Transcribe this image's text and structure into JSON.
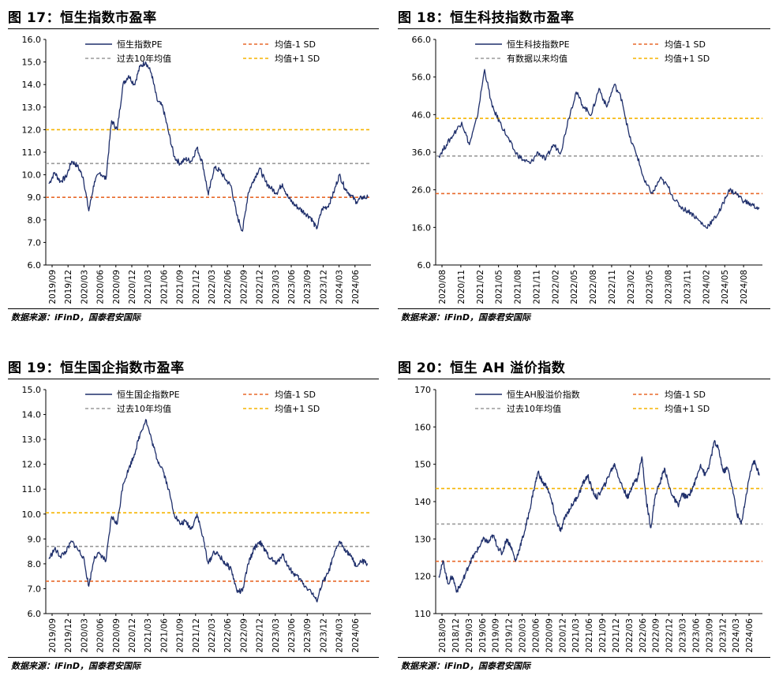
{
  "panels": [
    {
      "title": "图 17：恒生指数市盈率",
      "source": "数据来源：iFinD，国泰君安国际"
    },
    {
      "title": "图 18：恒生科技指数市盈率",
      "source": "数据来源：iFinD，国泰君安国际"
    },
    {
      "title": "图 19：恒生国企指数市盈率",
      "source": "数据来源：iFinD，国泰君安国际"
    },
    {
      "title": "图 20：恒生 AH 溢价指数",
      "source": "数据来源：iFinD，国泰君安国际"
    }
  ],
  "colors": {
    "series": "#1f2f6b",
    "avg": "#9a9a9a",
    "minus1sd": "#e8692a",
    "plus1sd": "#f5b400"
  },
  "chart_data": [
    {
      "type": "line",
      "ylim": [
        6,
        16
      ],
      "yticks": [
        "6.0",
        "7.0",
        "8.0",
        "9.0",
        "10.0",
        "11.0",
        "12.0",
        "13.0",
        "14.0",
        "15.0",
        "16.0"
      ],
      "xticks": [
        "2019/09",
        "2019/12",
        "2020/03",
        "2020/06",
        "2020/09",
        "2020/12",
        "2021/03",
        "2021/06",
        "2021/09",
        "2021/12",
        "2022/03",
        "2022/06",
        "2022/09",
        "2022/12",
        "2023/03",
        "2023/06",
        "2023/09",
        "2023/12",
        "2024/03",
        "2024/06"
      ],
      "x_range": [
        "2019/09",
        "2024/08"
      ],
      "legend": {
        "series": "恒生指数PE",
        "avg": "过去10年均值",
        "minus1sd": "均值-1 SD",
        "plus1sd": "均值+1 SD"
      },
      "ref_lines": {
        "avg": 10.5,
        "minus1sd": 9.0,
        "plus1sd": 12.0
      },
      "series": [
        {
          "name": "恒生指数PE",
          "points": [
            [
              0,
              9.6
            ],
            [
              1,
              10.1
            ],
            [
              2,
              9.7
            ],
            [
              3,
              9.9
            ],
            [
              4,
              10.6
            ],
            [
              5,
              10.4
            ],
            [
              6,
              9.9
            ],
            [
              7,
              8.4
            ],
            [
              8,
              9.7
            ],
            [
              9,
              10.1
            ],
            [
              10,
              9.8
            ],
            [
              11,
              12.4
            ],
            [
              12,
              12.0
            ],
            [
              13,
              14.0
            ],
            [
              14,
              14.4
            ],
            [
              15,
              14.0
            ],
            [
              16,
              14.8
            ],
            [
              17,
              15.0
            ],
            [
              18,
              14.5
            ],
            [
              19,
              13.3
            ],
            [
              20,
              13.0
            ],
            [
              21,
              11.9
            ],
            [
              22,
              10.8
            ],
            [
              23,
              10.5
            ],
            [
              24,
              10.7
            ],
            [
              25,
              10.6
            ],
            [
              26,
              11.2
            ],
            [
              27,
              10.5
            ],
            [
              28,
              9.1
            ],
            [
              29,
              10.3
            ],
            [
              30,
              10.2
            ],
            [
              31,
              9.8
            ],
            [
              32,
              9.5
            ],
            [
              33,
              8.2
            ],
            [
              34,
              7.5
            ],
            [
              35,
              9.2
            ],
            [
              36,
              9.8
            ],
            [
              37,
              10.3
            ],
            [
              38,
              9.7
            ],
            [
              39,
              9.4
            ],
            [
              40,
              9.2
            ],
            [
              41,
              9.6
            ],
            [
              42,
              9.0
            ],
            [
              43,
              8.7
            ],
            [
              44,
              8.5
            ],
            [
              45,
              8.3
            ],
            [
              46,
              8.1
            ],
            [
              47,
              7.6
            ],
            [
              48,
              8.5
            ],
            [
              49,
              8.6
            ],
            [
              50,
              9.2
            ],
            [
              51,
              10.0
            ],
            [
              52,
              9.4
            ],
            [
              53,
              9.1
            ],
            [
              54,
              8.8
            ],
            [
              55,
              9.0
            ],
            [
              56,
              9.0
            ]
          ]
        }
      ]
    },
    {
      "type": "line",
      "ylim": [
        6,
        66
      ],
      "yticks": [
        "6.0",
        "16.0",
        "26.0",
        "36.0",
        "46.0",
        "56.0",
        "66.0"
      ],
      "xticks": [
        "2020/08",
        "2020/11",
        "2021/02",
        "2021/05",
        "2021/08",
        "2021/11",
        "2022/02",
        "2022/05",
        "2022/08",
        "2022/11",
        "2023/02",
        "2023/05",
        "2023/08",
        "2023/11",
        "2024/02",
        "2024/05",
        "2024/08"
      ],
      "x_range": [
        "2020/08",
        "2024/08"
      ],
      "legend": {
        "series": "恒生科技指数PE",
        "avg": "有数据以来均值",
        "minus1sd": "均值-1 SD",
        "plus1sd": "均值+1 SD"
      },
      "ref_lines": {
        "avg": 35.0,
        "minus1sd": 25.0,
        "plus1sd": 45.0
      },
      "series": [
        {
          "name": "恒生科技指数PE",
          "points": [
            [
              0,
              35
            ],
            [
              1,
              38
            ],
            [
              2,
              41
            ],
            [
              3,
              44
            ],
            [
              4,
              38
            ],
            [
              5,
              45
            ],
            [
              6,
              58
            ],
            [
              7,
              48
            ],
            [
              8,
              44
            ],
            [
              9,
              40
            ],
            [
              10,
              36
            ],
            [
              11,
              34
            ],
            [
              12,
              33
            ],
            [
              13,
              36
            ],
            [
              14,
              34
            ],
            [
              15,
              38
            ],
            [
              16,
              36
            ],
            [
              17,
              45
            ],
            [
              18,
              52
            ],
            [
              19,
              48
            ],
            [
              20,
              46
            ],
            [
              21,
              53
            ],
            [
              22,
              48
            ],
            [
              23,
              54
            ],
            [
              24,
              50
            ],
            [
              25,
              40
            ],
            [
              26,
              35
            ],
            [
              27,
              28
            ],
            [
              28,
              25
            ],
            [
              29,
              29
            ],
            [
              30,
              27
            ],
            [
              31,
              23
            ],
            [
              32,
              21
            ],
            [
              33,
              20
            ],
            [
              34,
              18
            ],
            [
              35,
              16
            ],
            [
              36,
              18
            ],
            [
              37,
              21
            ],
            [
              38,
              26
            ],
            [
              39,
              25
            ],
            [
              40,
              23
            ],
            [
              41,
              22
            ],
            [
              42,
              21
            ]
          ]
        }
      ]
    },
    {
      "type": "line",
      "ylim": [
        6,
        15
      ],
      "yticks": [
        "6.0",
        "7.0",
        "8.0",
        "9.0",
        "10.0",
        "11.0",
        "12.0",
        "13.0",
        "14.0",
        "15.0"
      ],
      "xticks": [
        "2019/09",
        "2019/12",
        "2020/03",
        "2020/06",
        "2020/09",
        "2020/12",
        "2021/03",
        "2021/06",
        "2021/09",
        "2021/12",
        "2022/03",
        "2022/06",
        "2022/09",
        "2022/12",
        "2023/03",
        "2023/06",
        "2023/09",
        "2023/12",
        "2024/03",
        "2024/06"
      ],
      "x_range": [
        "2019/09",
        "2024/08"
      ],
      "legend": {
        "series": "恒生国企指数PE",
        "avg": "过去10年均值",
        "minus1sd": "均值-1 SD",
        "plus1sd": "均值+1 SD"
      },
      "ref_lines": {
        "avg": 8.7,
        "minus1sd": 7.3,
        "plus1sd": 10.05
      },
      "series": [
        {
          "name": "恒生国企指数PE",
          "points": [
            [
              0,
              8.2
            ],
            [
              1,
              8.6
            ],
            [
              2,
              8.3
            ],
            [
              3,
              8.5
            ],
            [
              4,
              8.9
            ],
            [
              5,
              8.6
            ],
            [
              6,
              8.3
            ],
            [
              7,
              7.1
            ],
            [
              8,
              8.3
            ],
            [
              9,
              8.4
            ],
            [
              10,
              8.1
            ],
            [
              11,
              9.9
            ],
            [
              12,
              9.6
            ],
            [
              13,
              11.2
            ],
            [
              14,
              11.8
            ],
            [
              15,
              12.4
            ],
            [
              16,
              13.2
            ],
            [
              17,
              13.8
            ],
            [
              18,
              13.0
            ],
            [
              19,
              12.2
            ],
            [
              20,
              11.8
            ],
            [
              21,
              11.0
            ],
            [
              22,
              10.0
            ],
            [
              23,
              9.6
            ],
            [
              24,
              9.7
            ],
            [
              25,
              9.4
            ],
            [
              26,
              10.0
            ],
            [
              27,
              9.1
            ],
            [
              28,
              8.0
            ],
            [
              29,
              8.5
            ],
            [
              30,
              8.3
            ],
            [
              31,
              8.0
            ],
            [
              32,
              7.8
            ],
            [
              33,
              6.9
            ],
            [
              34,
              6.9
            ],
            [
              35,
              8.0
            ],
            [
              36,
              8.6
            ],
            [
              37,
              8.9
            ],
            [
              38,
              8.5
            ],
            [
              39,
              8.2
            ],
            [
              40,
              8.0
            ],
            [
              41,
              8.4
            ],
            [
              42,
              7.9
            ],
            [
              43,
              7.6
            ],
            [
              44,
              7.4
            ],
            [
              45,
              7.1
            ],
            [
              46,
              6.9
            ],
            [
              47,
              6.5
            ],
            [
              48,
              7.2
            ],
            [
              49,
              7.6
            ],
            [
              50,
              8.3
            ],
            [
              51,
              8.9
            ],
            [
              52,
              8.6
            ],
            [
              53,
              8.3
            ],
            [
              54,
              7.9
            ],
            [
              55,
              8.1
            ],
            [
              56,
              8.0
            ]
          ]
        }
      ]
    },
    {
      "type": "line",
      "ylim": [
        110,
        170
      ],
      "yticks": [
        "110",
        "120",
        "130",
        "140",
        "150",
        "160",
        "170"
      ],
      "xticks": [
        "2018/09",
        "2018/12",
        "2019/03",
        "2019/06",
        "2019/09",
        "2019/12",
        "2020/03",
        "2020/06",
        "2020/09",
        "2020/12",
        "2021/03",
        "2021/06",
        "2021/09",
        "2021/12",
        "2022/03",
        "2022/06",
        "2022/09",
        "2022/12",
        "2023/03",
        "2023/06",
        "2023/09",
        "2023/12",
        "2024/03",
        "2024/06"
      ],
      "x_range": [
        "2018/09",
        "2024/08"
      ],
      "legend": {
        "series": "恒生AH股溢价指数",
        "avg": "过去10年均值",
        "minus1sd": "均值-1 SD",
        "plus1sd": "均值+1 SD"
      },
      "ref_lines": {
        "avg": 134,
        "minus1sd": 124,
        "plus1sd": 143.5
      },
      "series": [
        {
          "name": "恒生AH股溢价指数",
          "points": [
            [
              0,
              120
            ],
            [
              1,
              124
            ],
            [
              2,
              118
            ],
            [
              3,
              120
            ],
            [
              4,
              116
            ],
            [
              5,
              118
            ],
            [
              6,
              121
            ],
            [
              7,
              124
            ],
            [
              8,
              126
            ],
            [
              9,
              128
            ],
            [
              10,
              130
            ],
            [
              11,
              129
            ],
            [
              12,
              131
            ],
            [
              13,
              128
            ],
            [
              14,
              126
            ],
            [
              15,
              130
            ],
            [
              16,
              128
            ],
            [
              17,
              124
            ],
            [
              18,
              128
            ],
            [
              19,
              132
            ],
            [
              20,
              137
            ],
            [
              21,
              143
            ],
            [
              22,
              148
            ],
            [
              23,
              145
            ],
            [
              24,
              144
            ],
            [
              25,
              140
            ],
            [
              26,
              135
            ],
            [
              27,
              132
            ],
            [
              28,
              136
            ],
            [
              29,
              138
            ],
            [
              30,
              140
            ],
            [
              31,
              142
            ],
            [
              32,
              145
            ],
            [
              33,
              147
            ],
            [
              34,
              143
            ],
            [
              35,
              141
            ],
            [
              36,
              143
            ],
            [
              37,
              145
            ],
            [
              38,
              148
            ],
            [
              39,
              150
            ],
            [
              40,
              146
            ],
            [
              41,
              143
            ],
            [
              42,
              141
            ],
            [
              43,
              145
            ],
            [
              44,
              146
            ],
            [
              45,
              152
            ],
            [
              46,
              140
            ],
            [
              47,
              133
            ],
            [
              48,
              142
            ],
            [
              49,
              145
            ],
            [
              50,
              149
            ],
            [
              51,
              144
            ],
            [
              52,
              141
            ],
            [
              53,
              139
            ],
            [
              54,
              142
            ],
            [
              55,
              141
            ],
            [
              56,
              143
            ],
            [
              57,
              146
            ],
            [
              58,
              150
            ],
            [
              59,
              147
            ],
            [
              60,
              150
            ],
            [
              61,
              156
            ],
            [
              62,
              154
            ],
            [
              63,
              148
            ],
            [
              64,
              149
            ],
            [
              65,
              144
            ],
            [
              66,
              137
            ],
            [
              67,
              134
            ],
            [
              68,
              141
            ],
            [
              69,
              148
            ],
            [
              70,
              151
            ],
            [
              71,
              147
            ]
          ]
        }
      ]
    }
  ]
}
